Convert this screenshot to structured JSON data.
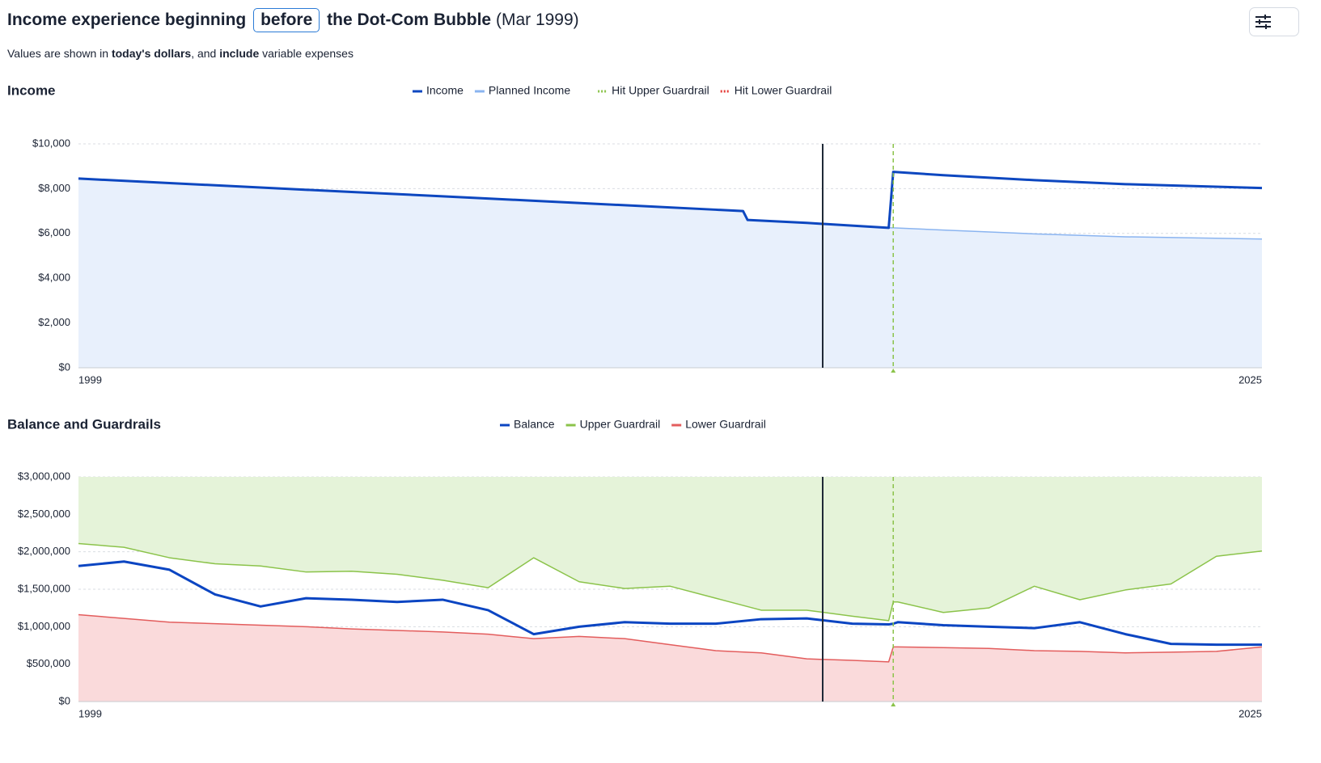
{
  "header": {
    "title_lead": "Income experience beginning",
    "title_choice": "before",
    "title_rest": "the Dot-Com Bubble",
    "title_date": "(Mar 1999)",
    "subtitle": [
      "Values are shown in",
      "today's dollars",
      ", and",
      "include",
      "variable expenses"
    ]
  },
  "chart_data": [
    {
      "type": "line",
      "title": "Income",
      "x": [
        1999,
        2001,
        2003,
        2005,
        2007,
        2009,
        2011,
        2013,
        2013.6,
        2013.7,
        2015,
        2016.8,
        2016.9,
        2018,
        2020,
        2022,
        2025
      ],
      "series": [
        {
          "name": "Planned Income",
          "color": "#8ab4f0",
          "width": 1.5,
          "fill": "below",
          "fill_color": "#e8f0fc",
          "values": [
            8450,
            8250,
            8050,
            7850,
            7660,
            7460,
            7260,
            7060,
            7000,
            6600,
            6470,
            6250,
            6250,
            6150,
            5980,
            5850,
            5750
          ]
        },
        {
          "name": "Income",
          "color": "#0d47c0",
          "width": 3,
          "values": [
            8450,
            8250,
            8050,
            7850,
            7660,
            7460,
            7260,
            7060,
            7000,
            6600,
            6470,
            6250,
            8750,
            8600,
            8380,
            8200,
            8030
          ]
        }
      ],
      "legend_order": [
        1,
        0
      ],
      "events": [
        {
          "name": "Hit Upper Guardrail",
          "color": "#8bc34a",
          "x": [
            2016.9
          ]
        },
        {
          "name": "Hit Lower Guardrail",
          "color": "#e53935",
          "x": []
        }
      ],
      "marker_x": 2015.35,
      "marker_color": "#1f2937",
      "xlim": [
        1999,
        2025
      ],
      "xticks": [
        1999,
        2025
      ],
      "ylim": [
        0,
        10000
      ],
      "yticks": [
        {
          "value": 0,
          "label": "$0"
        },
        {
          "value": 2000,
          "label": "$2,000"
        },
        {
          "value": 4000,
          "label": "$4,000"
        },
        {
          "value": 6000,
          "label": "$6,000"
        },
        {
          "value": 8000,
          "label": "$8,000"
        },
        {
          "value": 10000,
          "label": "$10,000"
        }
      ],
      "grid": true
    },
    {
      "type": "line",
      "title": "Balance and Guardrails",
      "x": [
        1999,
        2000,
        2001,
        2002,
        2003,
        2004,
        2005,
        2006,
        2007,
        2008,
        2009,
        2010,
        2011,
        2012,
        2013,
        2014,
        2015,
        2016,
        2016.8,
        2016.9,
        2017,
        2018,
        2019,
        2020,
        2021,
        2022,
        2023,
        2024,
        2025
      ],
      "series": [
        {
          "name": "Balance",
          "color": "#0b45c2",
          "width": 3,
          "values": [
            1810000,
            1870000,
            1760000,
            1430000,
            1270000,
            1380000,
            1360000,
            1330000,
            1360000,
            1220000,
            900000,
            1000000,
            1060000,
            1040000,
            1040000,
            1100000,
            1110000,
            1040000,
            1030000,
            1040000,
            1060000,
            1020000,
            1000000,
            980000,
            1060000,
            900000,
            770000,
            760000,
            760000
          ]
        },
        {
          "name": "Upper Guardrail",
          "color": "#8bc34a",
          "width": 1.5,
          "fill": "above",
          "fill_color": "#e5f3d9",
          "values": [
            2110000,
            2060000,
            1920000,
            1840000,
            1810000,
            1730000,
            1740000,
            1700000,
            1620000,
            1520000,
            1920000,
            1600000,
            1510000,
            1540000,
            1380000,
            1220000,
            1220000,
            1140000,
            1080000,
            1330000,
            1330000,
            1190000,
            1250000,
            1540000,
            1360000,
            1490000,
            1570000,
            1940000,
            2010000
          ]
        },
        {
          "name": "Lower Guardrail",
          "color": "#e35d5d",
          "width": 1.5,
          "fill": "below",
          "fill_color": "#fadadb",
          "values": [
            1160000,
            1110000,
            1060000,
            1040000,
            1020000,
            1000000,
            970000,
            950000,
            930000,
            900000,
            840000,
            870000,
            840000,
            760000,
            680000,
            650000,
            570000,
            550000,
            530000,
            730000,
            730000,
            720000,
            710000,
            680000,
            670000,
            650000,
            660000,
            670000,
            730000
          ]
        }
      ],
      "legend_order": [
        0,
        1,
        2
      ],
      "events": [
        {
          "color": "#8bc34a",
          "x": [
            2016.9
          ]
        }
      ],
      "marker_x": 2015.35,
      "marker_color": "#1f2937",
      "xlim": [
        1999,
        2025
      ],
      "xticks": [
        1999,
        2025
      ],
      "ylim": [
        0,
        3000000
      ],
      "yticks": [
        {
          "value": 0,
          "label": "$0"
        },
        {
          "value": 500000,
          "label": "$500,000"
        },
        {
          "value": 1000000,
          "label": "$1,000,000"
        },
        {
          "value": 1500000,
          "label": "$1,500,000"
        },
        {
          "value": 2000000,
          "label": "$2,000,000"
        },
        {
          "value": 2500000,
          "label": "$2,500,000"
        },
        {
          "value": 3000000,
          "label": "$3,000,000"
        }
      ],
      "grid": true
    }
  ]
}
